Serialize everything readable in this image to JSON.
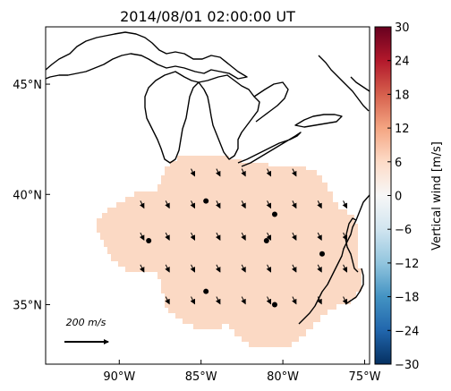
{
  "title": "2014/08/01 02:00:00 UT",
  "map": {
    "lon_range": [
      -94.5,
      -74.7
    ],
    "lat_range": [
      32.3,
      47.6
    ],
    "lat_ticks": [
      {
        "value": 45,
        "label": "45°N"
      },
      {
        "value": 40,
        "label": "40°N"
      },
      {
        "value": 35,
        "label": "35°N"
      }
    ],
    "lon_ticks": [
      {
        "value": -90,
        "label": "90°W"
      },
      {
        "value": -85,
        "label": "85°W"
      },
      {
        "value": -80,
        "label": "80°W"
      },
      {
        "value": -75,
        "label": "75°W"
      }
    ],
    "field_color": "#fbd9c4",
    "coast_color": "#000000",
    "stations": [
      {
        "lon": -84.7,
        "lat": 39.7
      },
      {
        "lon": -80.5,
        "lat": 39.1
      },
      {
        "lon": -88.2,
        "lat": 37.9
      },
      {
        "lon": -81.0,
        "lat": 37.9
      },
      {
        "lon": -77.6,
        "lat": 37.3
      },
      {
        "lon": -84.7,
        "lat": 35.6
      },
      {
        "lon": -80.5,
        "lat": 35.0
      }
    ],
    "reference_vector": {
      "label": "200 m/s",
      "magnitude": 200
    }
  },
  "colorbar": {
    "label": "Vertical wind [m/s]",
    "min": -30,
    "max": 30,
    "ticks": [
      "30",
      "24",
      "18",
      "12",
      "6",
      "0",
      "−6",
      "−12",
      "−18",
      "−24",
      "−30"
    ],
    "colormap": "RdBu_r",
    "colors": [
      "#67001f",
      "#b2182b",
      "#d6604d",
      "#f4a582",
      "#fddbc7",
      "#f7f7f7",
      "#d1e5f0",
      "#92c5de",
      "#4393c3",
      "#2166ac",
      "#053061"
    ]
  }
}
